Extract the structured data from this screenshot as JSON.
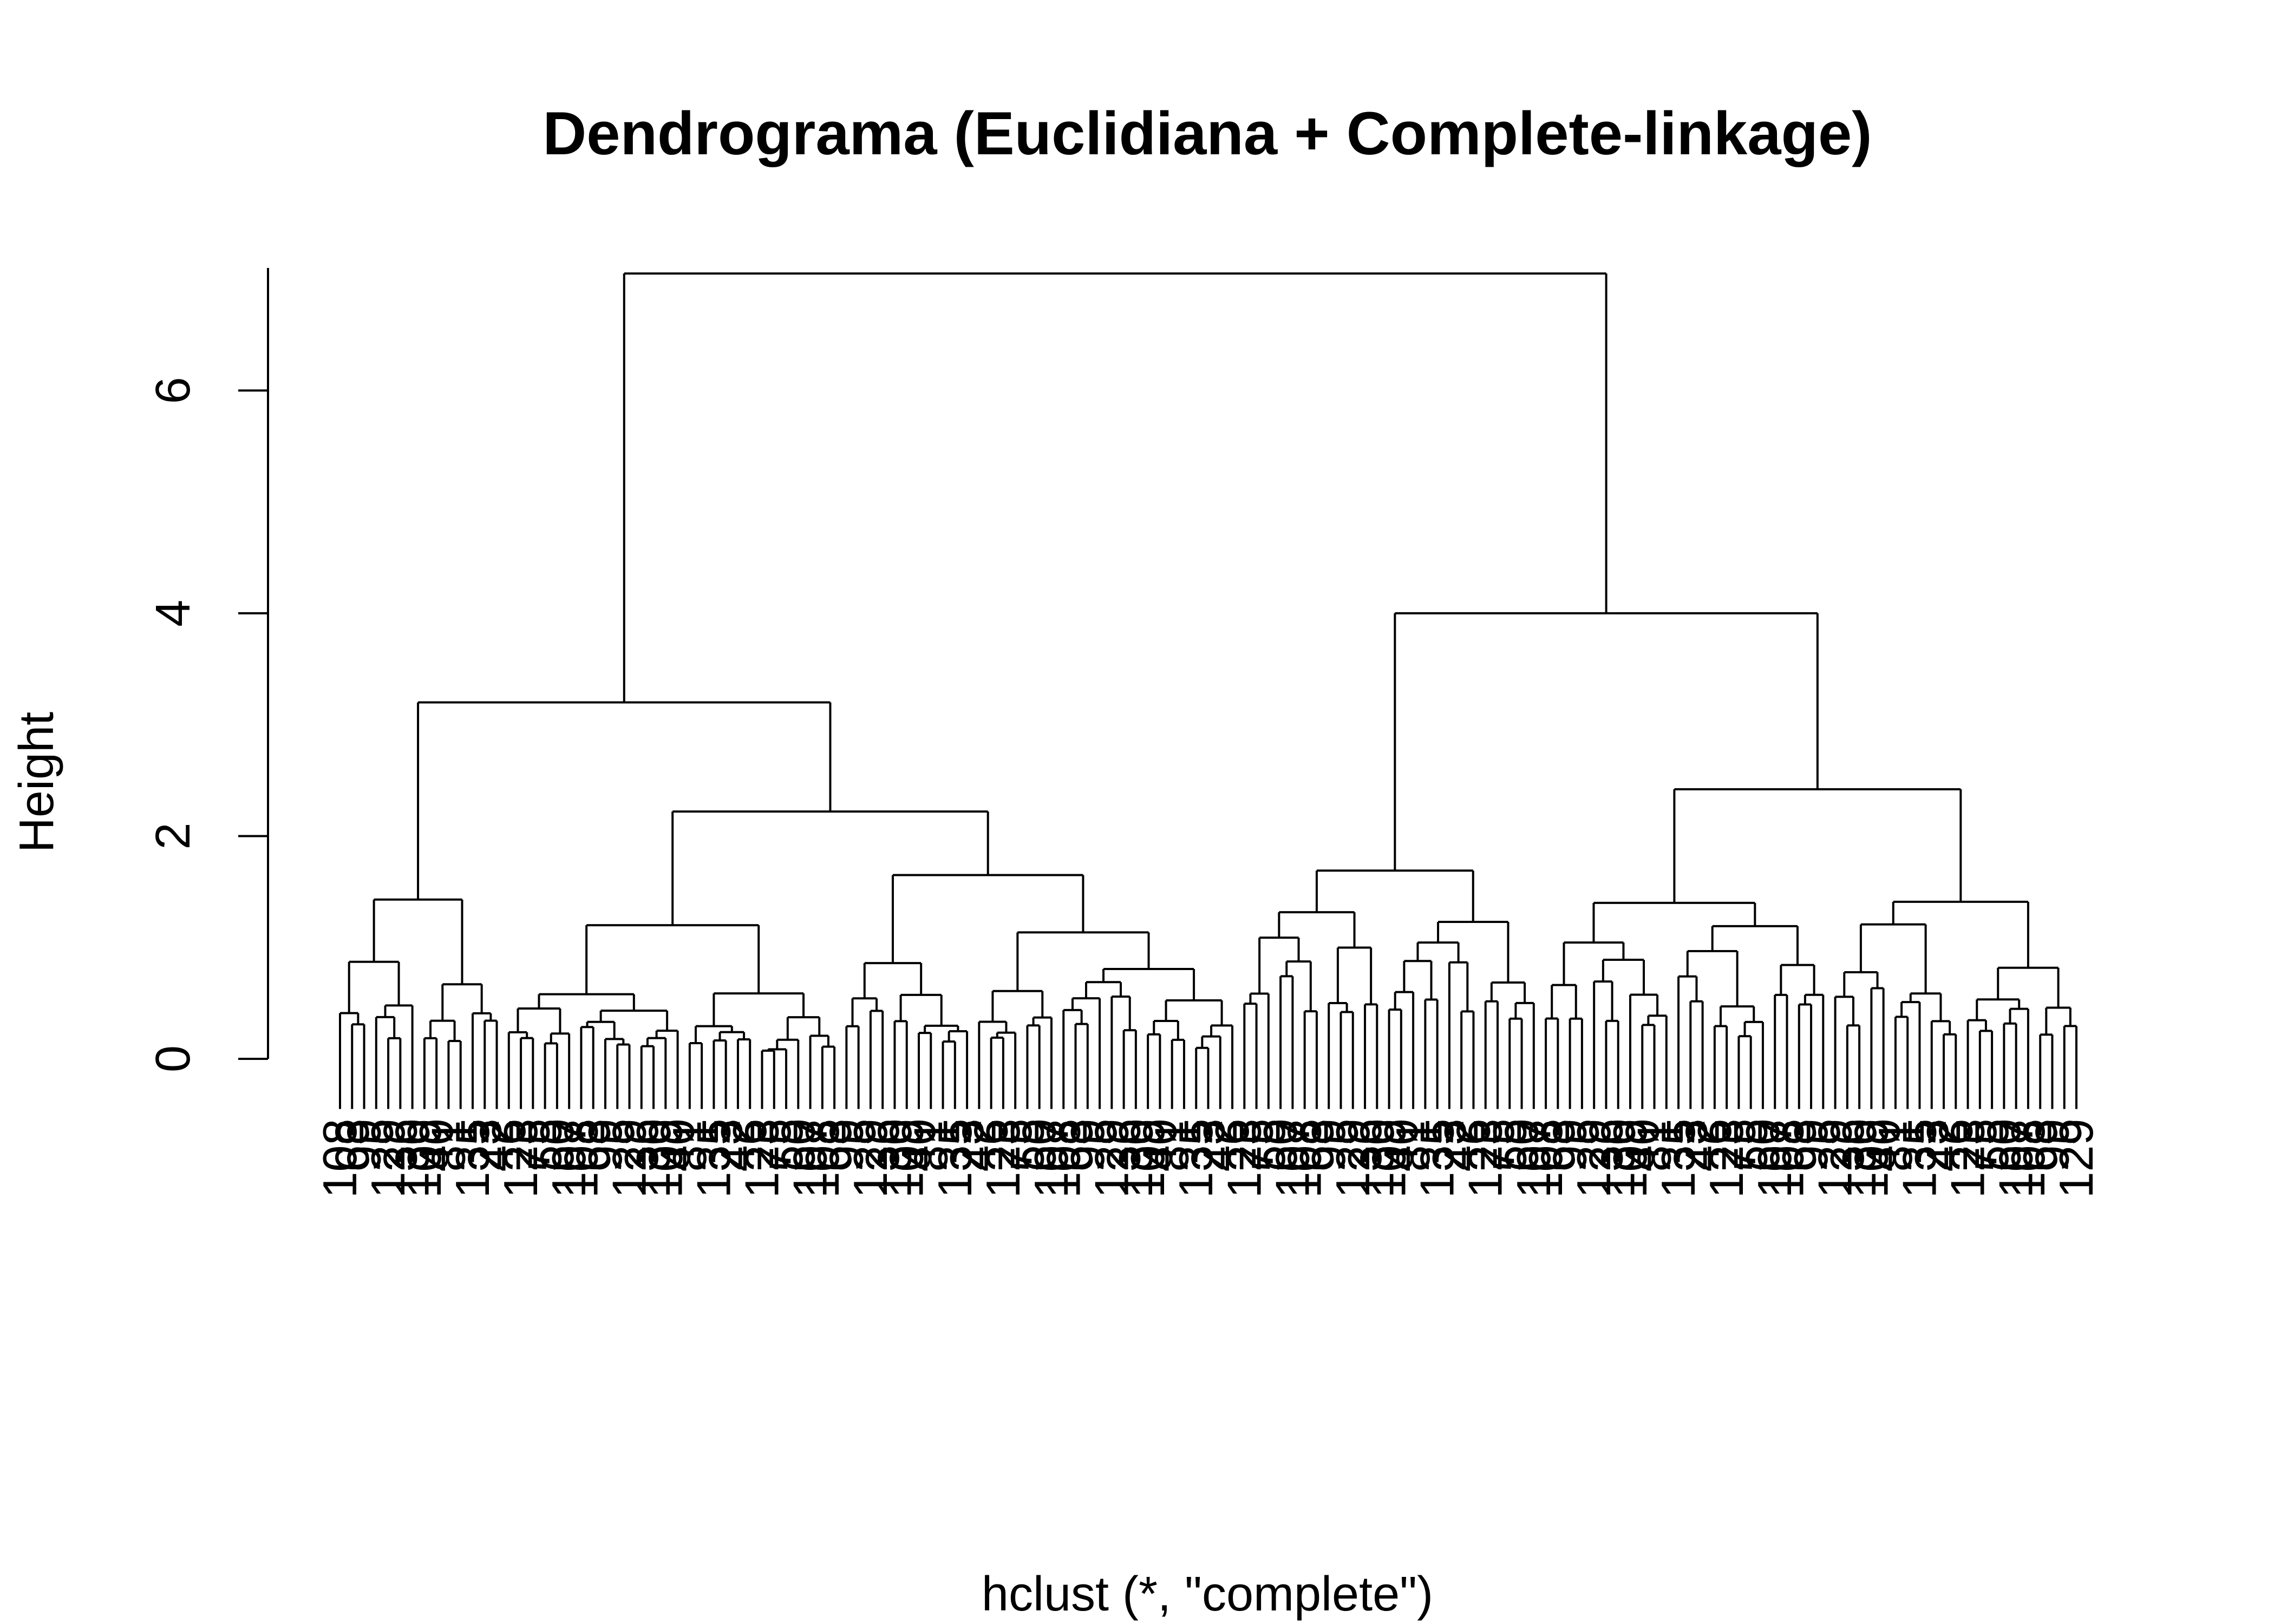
{
  "chart_data": {
    "type": "dendrogram",
    "title": "Dendrograma (Euclidiana + Complete-linkage)",
    "xlabel": "hclust (*, \"complete\")",
    "ylabel": "Height",
    "ylim": [
      0,
      7.1
    ],
    "yticks": [
      0,
      2,
      4,
      6
    ],
    "grid": false,
    "legend": "none",
    "root_height": 7.05,
    "main_clusters": [
      {
        "height": 3.2,
        "subclusters": [
          1.43,
          2.22
        ]
      },
      {
        "height": 4.0,
        "subclusters": [
          1.69,
          2.42
        ]
      }
    ],
    "leaf_labels": [
      "108",
      "63",
      "99",
      "5",
      "129",
      "36",
      "130",
      "109",
      "40",
      "81",
      "1",
      "135",
      "23",
      "42",
      "6",
      "123",
      "75",
      "55",
      "60",
      "107"
    ]
  }
}
